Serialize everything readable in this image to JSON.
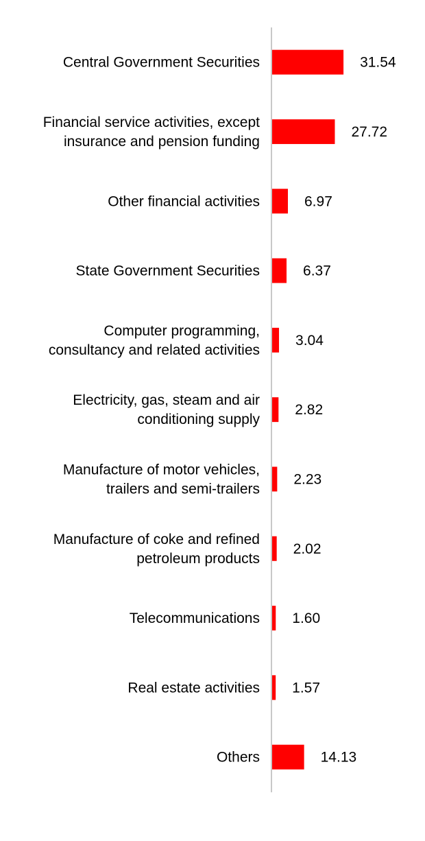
{
  "chart_data": {
    "type": "bar",
    "orientation": "horizontal",
    "categories": [
      [
        "Central Government Securities"
      ],
      [
        "Financial service activities, except",
        "insurance and pension funding"
      ],
      [
        "Other financial activities"
      ],
      [
        "State Government Securities"
      ],
      [
        "Computer programming,",
        "consultancy and related activities"
      ],
      [
        "Electricity, gas, steam and air",
        "conditioning supply"
      ],
      [
        "Manufacture of motor vehicles,",
        "trailers and semi-trailers"
      ],
      [
        "Manufacture of coke and refined",
        "petroleum products"
      ],
      [
        "Telecommunications"
      ],
      [
        "Real estate activities"
      ],
      [
        "Others"
      ]
    ],
    "values": [
      31.54,
      27.72,
      6.97,
      6.37,
      3.04,
      2.82,
      2.23,
      2.02,
      1.6,
      1.57,
      14.13
    ],
    "value_labels": [
      "31.54",
      "27.72",
      "6.97",
      "6.37",
      "3.04",
      "2.82",
      "2.23",
      "2.02",
      "1.60",
      "1.57",
      "14.13"
    ],
    "title": "",
    "xlabel": "",
    "ylabel": "",
    "xlim": [
      0,
      100
    ],
    "grid": false,
    "bar_color": "#ff0000",
    "axis_color": "#c8c8c8"
  }
}
